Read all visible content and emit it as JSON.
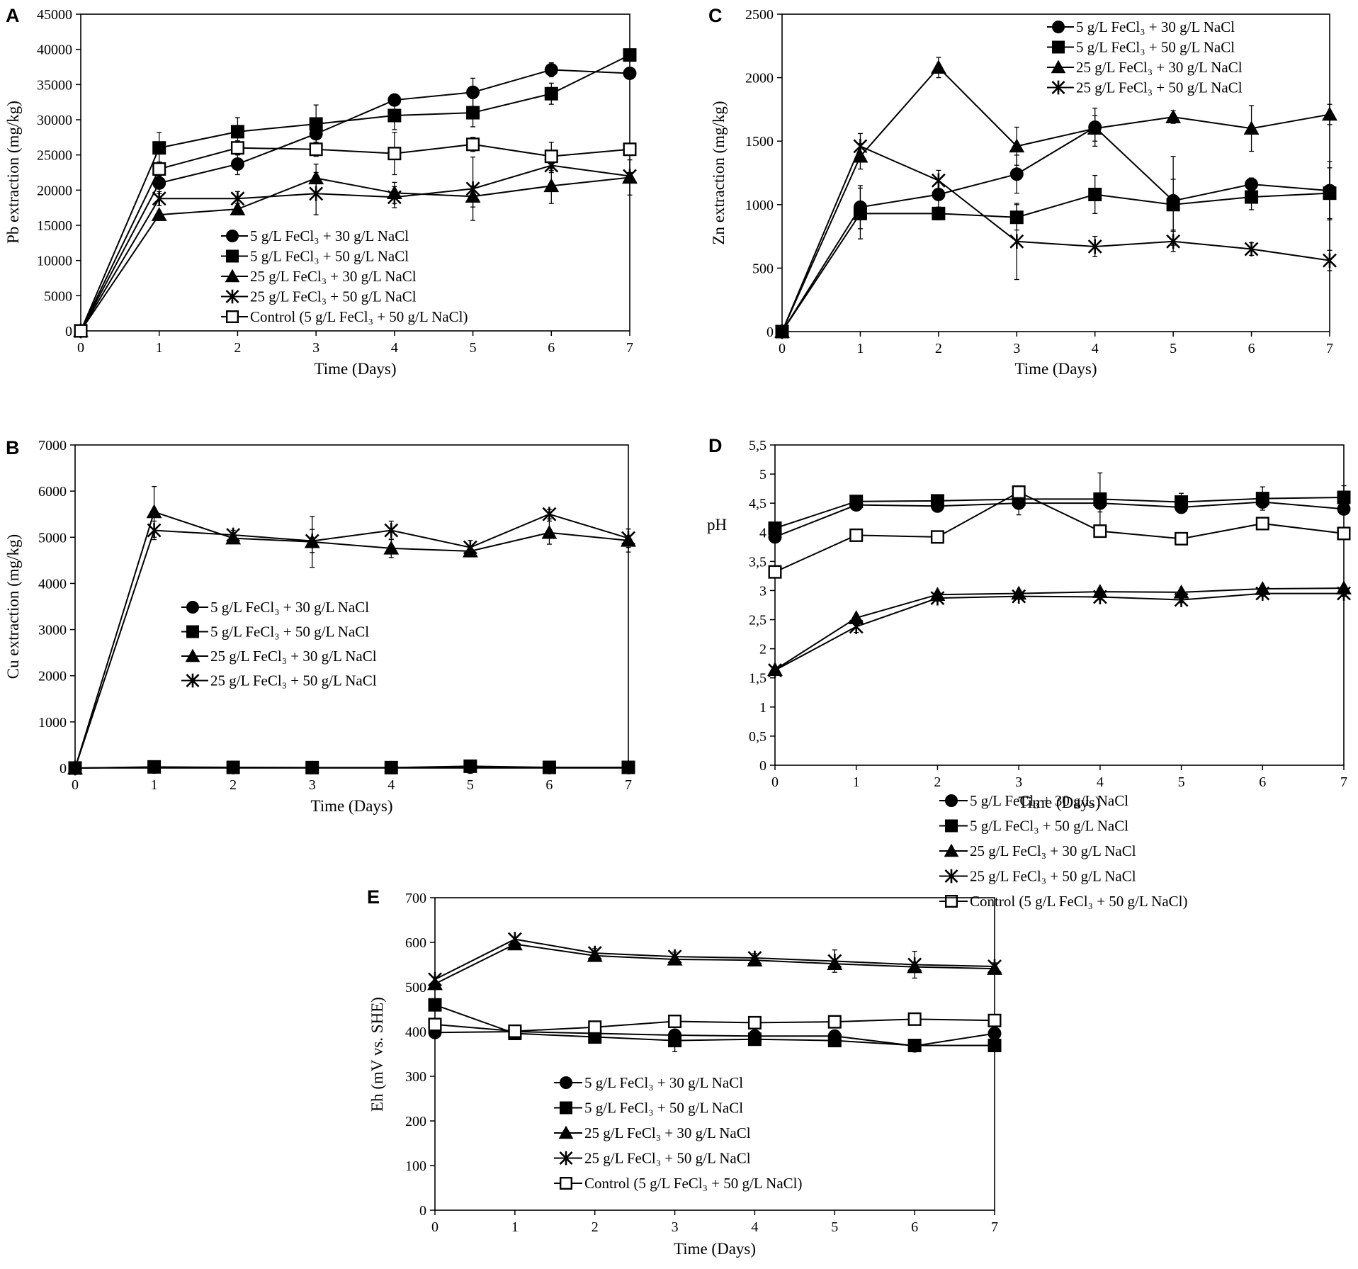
{
  "colors": {
    "ink": "#000000",
    "background": "#ffffff"
  },
  "chart_data": [
    {
      "panel": "A",
      "type": "line",
      "xlabel": "Time (Days)",
      "ylabel": "Pb extraction (mg/kg)",
      "xlim": [
        0,
        7
      ],
      "ylim": [
        0,
        45000
      ],
      "xticks": [
        0,
        1,
        2,
        3,
        4,
        5,
        6,
        7
      ],
      "yticks": [
        0,
        5000,
        10000,
        15000,
        20000,
        25000,
        30000,
        35000,
        40000,
        45000
      ],
      "ytick_labels": [
        "0",
        "5000",
        "10000",
        "15000",
        "20000",
        "25000",
        "30000",
        "35000",
        "40000",
        "45000"
      ],
      "legend_position": "center-bottom",
      "x": [
        0,
        1,
        2,
        3,
        4,
        5,
        6,
        7
      ],
      "series": [
        {
          "name": "5 g/L FeCl₃ + 30 g/L NaCl",
          "marker": "circle",
          "values": [
            0,
            21000,
            23700,
            28000,
            32800,
            33900,
            37100,
            36600
          ],
          "errors": [
            0,
            1500,
            1500,
            1500,
            500,
            2000,
            1000,
            500
          ]
        },
        {
          "name": "5 g/L FeCl₃ + 50 g/L NaCl",
          "marker": "square",
          "values": [
            0,
            26000,
            28300,
            29400,
            30600,
            31000,
            33700,
            39200
          ],
          "errors": [
            0,
            2200,
            2000,
            2700,
            2000,
            2000,
            1500,
            500
          ]
        },
        {
          "name": "25 g/L FeCl₃ + 30 g/L NaCl",
          "marker": "triangle",
          "values": [
            0,
            16500,
            17300,
            21700,
            19600,
            19100,
            20600,
            21800
          ],
          "errors": [
            0,
            500,
            800,
            2000,
            1500,
            1500,
            2500,
            2500
          ]
        },
        {
          "name": "25 g/L FeCl₃ + 50 g/L NaCl",
          "marker": "star",
          "values": [
            0,
            18800,
            18800,
            19500,
            19000,
            20200,
            23500,
            22000
          ],
          "errors": [
            0,
            1000,
            1000,
            3000,
            1500,
            4500,
            1000,
            500
          ]
        },
        {
          "name": "Control (5 g/L FeCl₃ + 50 g/L NaCl)",
          "marker": "open-square",
          "values": [
            0,
            23000,
            26000,
            25800,
            25200,
            26500,
            24800,
            25800
          ],
          "errors": [
            0,
            1000,
            1000,
            1000,
            3000,
            1000,
            2000,
            500
          ]
        }
      ]
    },
    {
      "panel": "B",
      "type": "line",
      "xlabel": "Time (Days)",
      "ylabel": "Cu extraction (mg/kg)",
      "xlim": [
        0,
        7
      ],
      "ylim": [
        0,
        7000
      ],
      "xticks": [
        0,
        1,
        2,
        3,
        4,
        5,
        6,
        7
      ],
      "yticks": [
        0,
        1000,
        2000,
        3000,
        4000,
        5000,
        6000,
        7000
      ],
      "ytick_labels": [
        "0",
        "1000",
        "2000",
        "3000",
        "4000",
        "5000",
        "6000",
        "7000"
      ],
      "legend_position": "center",
      "x": [
        0,
        1,
        2,
        3,
        4,
        5,
        6,
        7
      ],
      "series": [
        {
          "name": "5 g/L FeCl₃ + 30 g/L NaCl",
          "marker": "circle",
          "values": [
            0,
            20,
            10,
            10,
            10,
            20,
            10,
            10
          ],
          "errors": [
            0,
            0,
            0,
            0,
            0,
            0,
            0,
            0
          ]
        },
        {
          "name": "5 g/L FeCl₃ + 50 g/L NaCl",
          "marker": "square",
          "values": [
            0,
            25,
            15,
            10,
            10,
            40,
            15,
            15
          ],
          "errors": [
            0,
            0,
            0,
            0,
            0,
            0,
            0,
            0
          ]
        },
        {
          "name": "25 g/L FeCl₃ + 30 g/L NaCl",
          "marker": "triangle",
          "values": [
            0,
            5550,
            4980,
            4900,
            4760,
            4700,
            5100,
            4930
          ],
          "errors": [
            0,
            550,
            100,
            550,
            200,
            100,
            250,
            250
          ]
        },
        {
          "name": "25 g/L FeCl₃ + 50 g/L NaCl",
          "marker": "star",
          "values": [
            0,
            5150,
            5050,
            4920,
            5150,
            4780,
            5500,
            4980
          ],
          "errors": [
            0,
            200,
            100,
            250,
            200,
            150,
            100,
            200
          ]
        }
      ]
    },
    {
      "panel": "C",
      "type": "line",
      "xlabel": "Time (Days)",
      "ylabel": "Zn extraction (mg/kg)",
      "xlim": [
        0,
        7
      ],
      "ylim": [
        0,
        2500
      ],
      "xticks": [
        0,
        1,
        2,
        3,
        4,
        5,
        6,
        7
      ],
      "yticks": [
        0,
        500,
        1000,
        1500,
        2000,
        2500
      ],
      "ytick_labels": [
        "0",
        "500",
        "1000",
        "1500",
        "2000",
        "2500"
      ],
      "legend_position": "top",
      "x": [
        0,
        1,
        2,
        3,
        4,
        5,
        6,
        7
      ],
      "series": [
        {
          "name": "5 g/L FeCl₃ + 30 g/L NaCl",
          "marker": "circle",
          "values": [
            0,
            980,
            1080,
            1240,
            1610,
            1030,
            1160,
            1110
          ],
          "errors": [
            0,
            170,
            100,
            150,
            150,
            350,
            50,
            230
          ]
        },
        {
          "name": "5 g/L FeCl₃  + 50 g/L NaCl",
          "marker": "square",
          "values": [
            0,
            930,
            930,
            900,
            1080,
            1000,
            1060,
            1090
          ],
          "errors": [
            0,
            200,
            50,
            100,
            150,
            200,
            100,
            200
          ]
        },
        {
          "name": "25 g/L FeCl₃ + 30 g/L NaCl",
          "marker": "triangle",
          "values": [
            0,
            1380,
            2080,
            1460,
            1600,
            1690,
            1600,
            1710
          ],
          "errors": [
            0,
            100,
            80,
            150,
            100,
            50,
            180,
            80
          ]
        },
        {
          "name": "25 g/L FeCl₃ + 50 g/L NaCl",
          "marker": "star",
          "values": [
            0,
            1460,
            1190,
            710,
            670,
            710,
            650,
            560
          ],
          "errors": [
            0,
            100,
            80,
            300,
            80,
            80,
            50,
            80
          ]
        }
      ]
    },
    {
      "panel": "D",
      "type": "line",
      "xlabel": "Time (Days)",
      "ylabel": "pH",
      "xlim": [
        0,
        7
      ],
      "ylim": [
        0,
        5.5
      ],
      "xticks": [
        0,
        1,
        2,
        3,
        4,
        5,
        6,
        7
      ],
      "yticks": [
        0,
        0.5,
        1,
        1.5,
        2,
        2.5,
        3,
        3.5,
        4,
        4.5,
        5,
        5.5
      ],
      "ytick_labels": [
        "0",
        "0,5",
        "1",
        "1,5",
        "2",
        "2,5",
        "3",
        "3,5",
        "4",
        "4,5",
        "5",
        "5,5"
      ],
      "legend_position": "bottom-center",
      "x": [
        0,
        1,
        2,
        3,
        4,
        5,
        6,
        7
      ],
      "series": [
        {
          "name": "5 g/L FeCl₃ + 30 g/L NaCl",
          "marker": "circle",
          "values": [
            3.92,
            4.47,
            4.45,
            4.5,
            4.5,
            4.43,
            4.52,
            4.4
          ],
          "errors": [
            0.05,
            0.05,
            0.1,
            0.2,
            0.15,
            0.1,
            0.1,
            0.1
          ]
        },
        {
          "name": "5 g/L FeCl₃ + 50 g/L NaCl",
          "marker": "square",
          "values": [
            4.07,
            4.53,
            4.54,
            4.57,
            4.57,
            4.52,
            4.58,
            4.6
          ],
          "errors": [
            0.05,
            0.05,
            0.05,
            0.1,
            0.45,
            0.15,
            0.2,
            0.2
          ]
        },
        {
          "name": "25 g/L FeCl₃ + 30 g/L NaCl",
          "marker": "triangle",
          "values": [
            1.64,
            2.53,
            2.93,
            2.95,
            2.98,
            2.97,
            3.03,
            3.04
          ],
          "errors": [
            0.05,
            0.05,
            0.05,
            0.05,
            0.05,
            0.05,
            0.05,
            0.05
          ]
        },
        {
          "name": "25 g/L FeCl₃ + 50 g/L NaCl",
          "marker": "star",
          "values": [
            1.63,
            2.38,
            2.87,
            2.9,
            2.89,
            2.84,
            2.95,
            2.95
          ],
          "errors": [
            0.05,
            0.1,
            0.05,
            0.05,
            0.05,
            0.05,
            0.05,
            0.05
          ]
        },
        {
          "name": "Control (5 g/L FeCl₃ + 50 g/L NaCl)",
          "marker": "open-square",
          "values": [
            3.32,
            3.95,
            3.92,
            4.69,
            4.02,
            3.89,
            4.15,
            3.98
          ],
          "errors": [
            0.05,
            0.1,
            0.05,
            0.05,
            0.1,
            0.05,
            0.05,
            0.1
          ]
        }
      ]
    },
    {
      "panel": "E",
      "type": "line",
      "xlabel": "Time (Days)",
      "ylabel": "Eh (mV vs. SHE)",
      "xlim": [
        0,
        7
      ],
      "ylim": [
        0,
        700
      ],
      "xticks": [
        0,
        1,
        2,
        3,
        4,
        5,
        6,
        7
      ],
      "yticks": [
        0,
        100,
        200,
        300,
        400,
        500,
        600,
        700
      ],
      "ytick_labels": [
        "0",
        "100",
        "200",
        "300",
        "400",
        "500",
        "600",
        "700"
      ],
      "legend_position": "bottom-center",
      "x": [
        0,
        1,
        2,
        3,
        4,
        5,
        6,
        7
      ],
      "series": [
        {
          "name": "5 g/L FeCl₃ + 30 g/L NaCl",
          "marker": "circle",
          "values": [
            398,
            400,
            396,
            392,
            390,
            390,
            368,
            396
          ],
          "errors": [
            5,
            5,
            5,
            8,
            5,
            5,
            5,
            5
          ]
        },
        {
          "name": "5 g/L FeCl₃ + 50 g/L NaCl",
          "marker": "square",
          "values": [
            460,
            396,
            388,
            380,
            383,
            380,
            369,
            369
          ],
          "errors": [
            5,
            5,
            5,
            25,
            5,
            5,
            5,
            5
          ]
        },
        {
          "name": "25 g/L FeCl₃ + 30 g/L NaCl",
          "marker": "triangle",
          "values": [
            507,
            596,
            570,
            562,
            560,
            552,
            545,
            541
          ],
          "errors": [
            5,
            5,
            10,
            10,
            8,
            10,
            10,
            8
          ]
        },
        {
          "name": "25 g/L FeCl₃ + 50 g/L NaCl",
          "marker": "star",
          "values": [
            517,
            607,
            576,
            568,
            565,
            558,
            550,
            546
          ],
          "errors": [
            5,
            5,
            10,
            10,
            10,
            25,
            30,
            8
          ]
        },
        {
          "name": "Control (5 g/L FeCl₃ + 50 g/L NaCl)",
          "marker": "open-square",
          "values": [
            416,
            401,
            410,
            423,
            420,
            422,
            428,
            425
          ],
          "errors": [
            5,
            5,
            5,
            5,
            5,
            8,
            5,
            5
          ]
        }
      ]
    }
  ]
}
